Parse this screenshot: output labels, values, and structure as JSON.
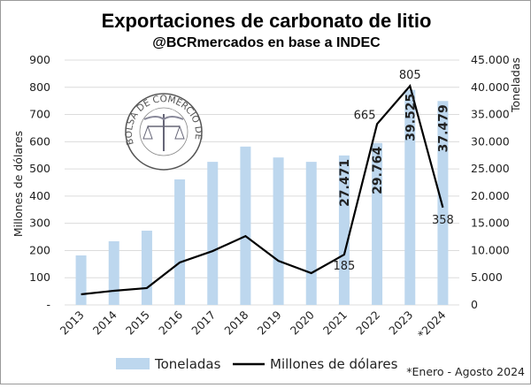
{
  "chart_data": {
    "type": "bar+line",
    "title": "Exportaciones de carbonato de litio",
    "subtitle": "@BCRmercados en base a INDEC",
    "categories": [
      "2013",
      "2014",
      "2015",
      "2016",
      "2017",
      "2018",
      "2019",
      "2020",
      "2021",
      "2022",
      "2023",
      "*2024"
    ],
    "series": [
      {
        "name": "Toneladas",
        "type": "bar",
        "axis": "right",
        "color": "#bdd7ee",
        "values": [
          9100,
          11700,
          13650,
          23070,
          26300,
          29100,
          27100,
          26300,
          27471,
          29764,
          39525,
          37479
        ],
        "labels": [
          null,
          null,
          null,
          null,
          null,
          null,
          null,
          null,
          "27.471",
          "29.764",
          "39.525",
          "37.479"
        ]
      },
      {
        "name": "Millones de dólares",
        "type": "line",
        "axis": "left",
        "color": "#000000",
        "values": [
          39,
          52,
          62,
          156,
          198,
          253,
          162,
          117,
          185,
          665,
          805,
          358
        ],
        "labels": [
          null,
          null,
          null,
          null,
          null,
          null,
          null,
          null,
          "185",
          "665",
          "805",
          "358"
        ]
      }
    ],
    "left_axis": {
      "label": "Millones de dólares",
      "range": [
        0,
        900
      ],
      "ticks": [
        "-",
        "100",
        "200",
        "300",
        "400",
        "500",
        "600",
        "700",
        "800",
        "900"
      ]
    },
    "right_axis": {
      "label": "Toneladas",
      "range": [
        0,
        45000
      ],
      "ticks": [
        "0",
        "5.000",
        "10.000",
        "15.000",
        "20.000",
        "25.000",
        "30.000",
        "35.000",
        "40.000",
        "45.000"
      ]
    },
    "grid": true,
    "legend": "bottom",
    "note": "*Enero - Agosto 2024",
    "logo_text": "BOLSA DE COMERCIO DE ROSARIO"
  }
}
